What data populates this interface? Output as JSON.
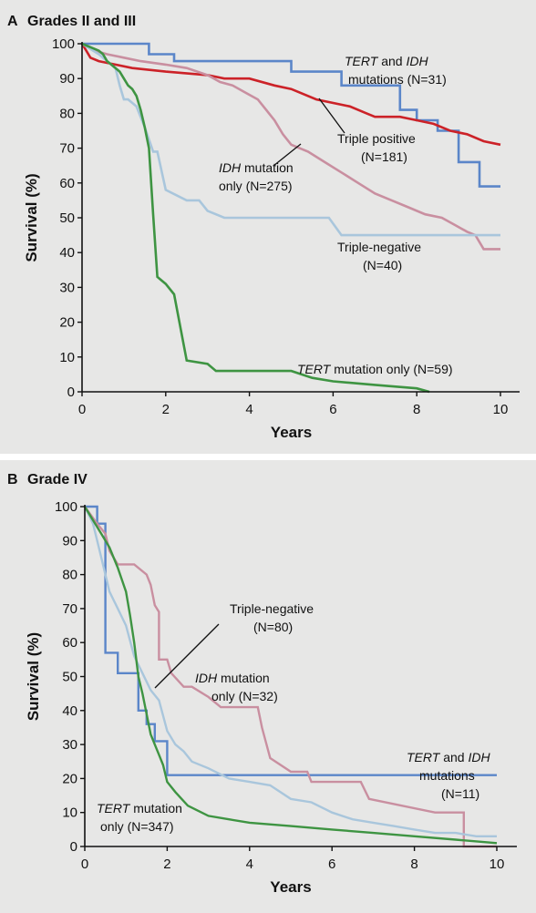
{
  "chart_data": [
    {
      "type": "line",
      "panel_letter": "A",
      "title": "Grades II and III",
      "xlabel": "Years",
      "ylabel": "Survival (%)",
      "xlim": [
        0,
        10
      ],
      "ylim": [
        0,
        100
      ],
      "xticks": [
        0,
        2,
        4,
        6,
        8,
        10
      ],
      "yticks": [
        0,
        10,
        20,
        30,
        40,
        50,
        60,
        70,
        80,
        90,
        100
      ],
      "grid": false,
      "series": [
        {
          "color": "#5b86c9",
          "x": [
            0,
            1.6,
            1.6,
            2.2,
            2.2,
            5.0,
            5.0,
            6.2,
            6.2,
            7.6,
            7.6,
            8.0,
            8.0,
            8.5,
            8.5,
            9.0,
            9.0,
            9.5,
            9.5,
            10.0
          ],
          "y": [
            100,
            100,
            97,
            97,
            95,
            95,
            92,
            92,
            88,
            88,
            81,
            81,
            78,
            78,
            75,
            75,
            66,
            66,
            59,
            59
          ]
        },
        {
          "color": "#cc2228",
          "x": [
            0,
            0.1,
            0.2,
            0.4,
            0.8,
            1.2,
            2.0,
            3.0,
            3.4,
            4.0,
            4.6,
            5.0,
            5.6,
            6.4,
            6.8,
            7.0,
            7.6,
            8.0,
            8.4,
            8.8,
            9.2,
            9.6,
            10.0
          ],
          "y": [
            100,
            98,
            96,
            95,
            94,
            93,
            92,
            91,
            90,
            90,
            88,
            87,
            84,
            82,
            80,
            79,
            79,
            78,
            77,
            75,
            74,
            72,
            71
          ]
        },
        {
          "color": "#c98fa0",
          "x": [
            0,
            0.3,
            0.6,
            1.0,
            1.4,
            2.0,
            2.5,
            3.0,
            3.3,
            3.6,
            3.9,
            4.2,
            4.4,
            4.6,
            4.8,
            5.0,
            5.4,
            5.8,
            6.2,
            6.6,
            7.0,
            7.4,
            7.8,
            8.2,
            8.6,
            8.9,
            9.2,
            9.4,
            9.6,
            9.7,
            10.0
          ],
          "y": [
            100,
            98,
            97,
            96,
            95,
            94,
            93,
            91,
            89,
            88,
            86,
            84,
            81,
            78,
            74,
            71,
            69,
            66,
            63,
            60,
            57,
            55,
            53,
            51,
            50,
            48,
            46,
            45,
            41,
            41,
            41
          ]
        },
        {
          "color": "#a9c6dc",
          "x": [
            0,
            0.4,
            0.6,
            0.8,
            0.9,
            1.0,
            1.1,
            1.3,
            1.5,
            1.7,
            1.8,
            2.0,
            2.5,
            2.8,
            3.0,
            3.4,
            4.0,
            4.5,
            5.0,
            5.5,
            5.9,
            6.2,
            8.0,
            9.0,
            10.0
          ],
          "y": [
            100,
            97,
            95,
            93,
            88,
            84,
            84,
            82,
            76,
            69,
            69,
            58,
            55,
            55,
            52,
            50,
            50,
            50,
            50,
            50,
            50,
            45,
            45,
            45,
            45
          ]
        },
        {
          "color": "#3e9442",
          "x": [
            0,
            0.4,
            0.5,
            0.6,
            0.7,
            0.8,
            0.9,
            1.0,
            1.1,
            1.2,
            1.3,
            1.4,
            1.5,
            1.6,
            1.7,
            1.8,
            1.9,
            2.0,
            2.2,
            2.5,
            3.0,
            3.2,
            3.5,
            4.0,
            5.0,
            5.5,
            6.0,
            7.0,
            8.0,
            8.3
          ],
          "y": [
            100,
            98,
            97,
            95,
            94,
            93,
            92,
            90,
            88,
            87,
            85,
            81,
            76,
            70,
            51,
            33,
            32,
            31,
            28,
            9,
            8,
            6,
            6,
            6,
            6,
            4,
            3,
            2,
            1,
            0
          ]
        }
      ],
      "labels": [
        {
          "italic": "TERT",
          "text": " and ",
          "italic2": "IDH"
        },
        {
          "text": "mutations (N=31)"
        },
        {
          "text": "Triple positive"
        },
        {
          "text": "(N=181)"
        },
        {
          "italic": "IDH",
          "text": " mutation"
        },
        {
          "text": "only (N=275)"
        },
        {
          "text": "Triple-negative"
        },
        {
          "text": "(N=40)"
        },
        {
          "italic": "TERT",
          "text": " mutation only (N=59)"
        }
      ]
    },
    {
      "type": "line",
      "panel_letter": "B",
      "title": "Grade IV",
      "xlabel": "Years",
      "ylabel": "Survival (%)",
      "xlim": [
        0,
        10
      ],
      "ylim": [
        0,
        100
      ],
      "xticks": [
        0,
        2,
        4,
        6,
        8,
        10
      ],
      "yticks": [
        0,
        10,
        20,
        30,
        40,
        50,
        60,
        70,
        80,
        90,
        100
      ],
      "grid": false,
      "series": [
        {
          "color": "#5b86c9",
          "x": [
            0,
            0.3,
            0.3,
            0.5,
            0.5,
            0.8,
            0.8,
            1.3,
            1.3,
            1.5,
            1.5,
            1.7,
            1.7,
            2.0,
            2.0,
            10.0
          ],
          "y": [
            100,
            100,
            95,
            95,
            57,
            57,
            51,
            51,
            40,
            40,
            36,
            36,
            31,
            31,
            21,
            21
          ]
        },
        {
          "color": "#c98fa0",
          "x": [
            0,
            0.3,
            0.5,
            0.6,
            0.8,
            1.0,
            1.2,
            1.5,
            1.6,
            1.7,
            1.8,
            1.8,
            2.0,
            2.1,
            2.4,
            2.6,
            3.0,
            3.3,
            3.5,
            4.2,
            4.3,
            4.5,
            5.0,
            5.4,
            5.5,
            6.0,
            6.7,
            6.9,
            8.5,
            9.2,
            9.2,
            10.0
          ],
          "y": [
            100,
            95,
            92,
            87,
            83,
            83,
            83,
            80,
            77,
            71,
            69,
            55,
            55,
            51,
            47,
            47,
            44,
            41,
            41,
            41,
            35,
            26,
            22,
            22,
            19,
            19,
            19,
            14,
            10,
            10,
            0,
            0
          ]
        },
        {
          "color": "#a9c6dc",
          "x": [
            0,
            0.2,
            0.3,
            0.4,
            0.5,
            0.6,
            0.8,
            1.0,
            1.2,
            1.4,
            1.6,
            1.8,
            2.0,
            2.2,
            2.4,
            2.6,
            3.0,
            3.5,
            4.0,
            4.5,
            5.0,
            5.5,
            6.0,
            6.5,
            7.0,
            7.5,
            8.0,
            8.5,
            9.0,
            9.5,
            10.0
          ],
          "y": [
            100,
            95,
            90,
            85,
            80,
            75,
            70,
            65,
            56,
            51,
            46,
            43,
            34,
            30,
            28,
            25,
            23,
            20,
            19,
            18,
            14,
            13,
            10,
            8,
            7,
            6,
            5,
            4,
            4,
            3,
            3
          ]
        },
        {
          "color": "#3e9442",
          "x": [
            0,
            0.2,
            0.4,
            0.6,
            0.8,
            1.0,
            1.1,
            1.2,
            1.3,
            1.4,
            1.5,
            1.6,
            1.7,
            1.8,
            1.9,
            2.0,
            2.2,
            2.5,
            3.0,
            3.5,
            4.0,
            5.0,
            6.0,
            7.0,
            8.0,
            9.0,
            10.0
          ],
          "y": [
            100,
            96,
            92,
            88,
            82,
            75,
            68,
            60,
            50,
            45,
            39,
            33,
            30,
            27,
            24,
            19,
            16,
            12,
            9,
            8,
            7,
            6,
            5,
            4,
            3,
            2,
            1
          ]
        }
      ],
      "labels": [
        {
          "text": "Triple-negative"
        },
        {
          "text": "(N=80)"
        },
        {
          "italic": "IDH",
          "text": " mutation"
        },
        {
          "text": "only (N=32)"
        },
        {
          "italic": "TERT",
          "text": " and ",
          "italic2": "IDH"
        },
        {
          "text": "mutations"
        },
        {
          "text": "(N=11)"
        },
        {
          "italic": "TERT",
          "text": " mutation"
        },
        {
          "text": "only (N=347)"
        }
      ]
    }
  ]
}
